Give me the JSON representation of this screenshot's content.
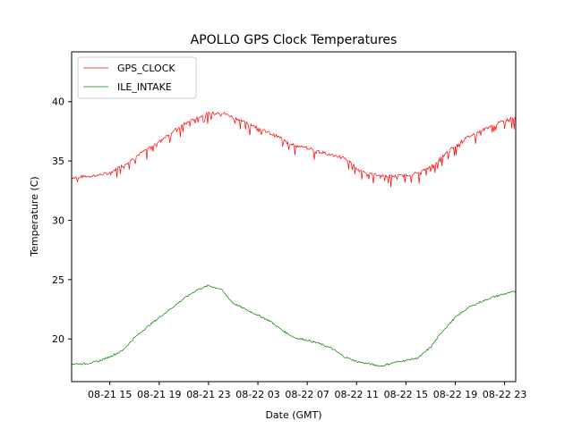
{
  "chart_data": {
    "type": "line",
    "title": "APOLLO GPS Clock Temperatures",
    "xlabel": "Date (GMT)",
    "ylabel": "Temperature (C)",
    "x_ticks": [
      "08-21 15",
      "08-21 19",
      "08-21 23",
      "08-22 03",
      "08-22 07",
      "08-22 11",
      "08-22 15",
      "08-22 19",
      "08-22 23"
    ],
    "x_tick_hours": [
      15,
      19,
      23,
      27,
      31,
      35,
      39,
      43,
      47
    ],
    "xlim_hours": [
      11.9,
      47.9
    ],
    "y_ticks": [
      20,
      25,
      30,
      35,
      40
    ],
    "ylim": [
      16.4,
      44.2
    ],
    "legend_position": "top-left",
    "grid": false,
    "series": [
      {
        "name": "GPS_CLOCK",
        "color": "#ff0000",
        "x_hours": [
          11.9,
          13,
          14,
          15,
          16,
          17,
          18,
          19,
          20,
          21,
          22,
          23,
          24,
          25,
          26,
          27,
          28,
          29,
          30,
          31,
          32,
          33,
          34,
          35,
          36,
          37,
          38,
          39,
          40,
          41,
          42,
          43,
          44,
          45,
          46,
          47,
          47.9
        ],
        "values": [
          33.6,
          33.7,
          33.8,
          34.0,
          34.6,
          35.3,
          36.0,
          36.7,
          37.4,
          38.1,
          38.6,
          39.0,
          39.1,
          38.7,
          38.3,
          37.8,
          37.3,
          36.9,
          36.3,
          36.1,
          35.8,
          35.5,
          35.3,
          34.4,
          33.9,
          33.8,
          33.7,
          33.8,
          34.0,
          34.5,
          35.4,
          36.3,
          37.0,
          37.5,
          38.0,
          38.4,
          38.7
        ]
      },
      {
        "name": "ILE_INTAKE",
        "color": "#008000",
        "x_hours": [
          11.9,
          13,
          14,
          15,
          16,
          17,
          18,
          19,
          20,
          21,
          22,
          23,
          24,
          25,
          26,
          27,
          28,
          29,
          30,
          31,
          32,
          33,
          34,
          35,
          36,
          37,
          38,
          39,
          40,
          41,
          42,
          43,
          44,
          45,
          46,
          47,
          47.9
        ],
        "values": [
          17.9,
          17.9,
          18.1,
          18.5,
          19.0,
          20.1,
          21.0,
          21.8,
          22.6,
          23.4,
          24.1,
          24.5,
          24.2,
          23.0,
          22.5,
          22.0,
          21.5,
          20.7,
          20.1,
          19.9,
          19.6,
          19.2,
          18.5,
          18.1,
          17.9,
          17.7,
          18.0,
          18.2,
          18.4,
          19.3,
          20.7,
          21.8,
          22.6,
          23.1,
          23.5,
          23.8,
          24.0
        ]
      }
    ]
  }
}
